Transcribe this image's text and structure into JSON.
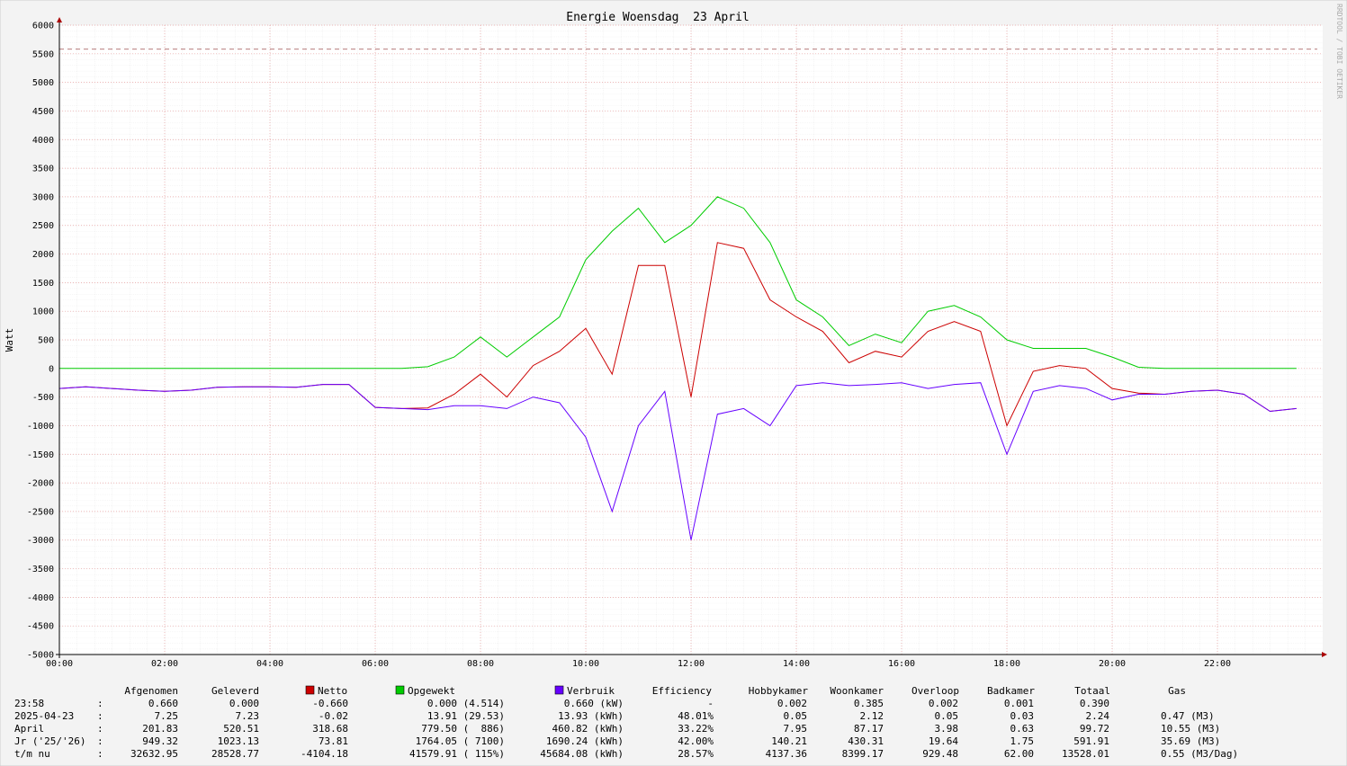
{
  "chart_data": {
    "type": "line",
    "title": "Energie Woensdag  23 April",
    "y_label": "Watt",
    "watermark": "RRDTOOL / TOBI OETIKER",
    "x": [
      0,
      0.5,
      1,
      1.5,
      2,
      2.5,
      3,
      3.5,
      4,
      4.5,
      5,
      5.5,
      6,
      6.5,
      7,
      7.5,
      8,
      8.5,
      9,
      9.5,
      10,
      10.5,
      11,
      11.5,
      12,
      12.5,
      13,
      13.5,
      14,
      14.5,
      15,
      15.5,
      16,
      16.5,
      17,
      17.5,
      18,
      18.5,
      19,
      19.5,
      20,
      20.5,
      21,
      21.5,
      22,
      22.5,
      23,
      23.5
    ],
    "xlim": [
      0,
      24
    ],
    "xticks": [
      {
        "value": 0,
        "label": "00:00"
      },
      {
        "value": 2,
        "label": "02:00"
      },
      {
        "value": 4,
        "label": "04:00"
      },
      {
        "value": 6,
        "label": "06:00"
      },
      {
        "value": 8,
        "label": "08:00"
      },
      {
        "value": 10,
        "label": "10:00"
      },
      {
        "value": 12,
        "label": "12:00"
      },
      {
        "value": 14,
        "label": "14:00"
      },
      {
        "value": 16,
        "label": "16:00"
      },
      {
        "value": 18,
        "label": "18:00"
      },
      {
        "value": 20,
        "label": "20:00"
      },
      {
        "value": 22,
        "label": "22:00"
      }
    ],
    "ylim": [
      -5000,
      6000
    ],
    "yticks": [
      -5000,
      -4500,
      -4000,
      -3500,
      -3000,
      -2500,
      -2000,
      -1500,
      -1000,
      -500,
      0,
      500,
      1000,
      1500,
      2000,
      2500,
      3000,
      3500,
      4000,
      4500,
      5000,
      5500,
      6000
    ],
    "grid": true,
    "hrule": 5580,
    "series": [
      {
        "name": "Opgewekt",
        "color": "#00cc00",
        "values": [
          0,
          0,
          0,
          0,
          0,
          0,
          0,
          0,
          0,
          0,
          0,
          0,
          0,
          0,
          30,
          200,
          550,
          200,
          550,
          900,
          1900,
          2400,
          2800,
          2200,
          2500,
          3000,
          2800,
          2200,
          1200,
          900,
          400,
          600,
          450,
          1000,
          1100,
          900,
          500,
          350,
          350,
          350,
          200,
          20,
          0,
          0,
          0,
          0,
          0,
          0
        ]
      },
      {
        "name": "Netto",
        "color": "#cc0000",
        "values": [
          -350,
          -320,
          -350,
          -380,
          -400,
          -380,
          -330,
          -320,
          -320,
          -330,
          -280,
          -280,
          -680,
          -700,
          -690,
          -450,
          -100,
          -500,
          50,
          300,
          700,
          -100,
          1800,
          1800,
          -500,
          2200,
          2100,
          1200,
          900,
          650,
          100,
          300,
          200,
          650,
          820,
          650,
          -1000,
          -50,
          50,
          0,
          -350,
          -430,
          -450,
          -400,
          -380,
          -450,
          -750,
          -700
        ]
      },
      {
        "name": "Verbruik",
        "color": "#6600ff",
        "values": [
          -350,
          -320,
          -350,
          -380,
          -400,
          -380,
          -330,
          -320,
          -320,
          -330,
          -280,
          -280,
          -680,
          -700,
          -720,
          -650,
          -650,
          -700,
          -500,
          -600,
          -1200,
          -2500,
          -1000,
          -400,
          -3000,
          -800,
          -700,
          -1000,
          -300,
          -250,
          -300,
          -280,
          -250,
          -350,
          -280,
          -250,
          -1500,
          -400,
          -300,
          -350,
          -550,
          -450,
          -450,
          -400,
          -380,
          -450,
          -750,
          -700
        ]
      }
    ]
  },
  "table": {
    "columns": [
      "Afgenomen",
      "Geleverd",
      "Netto",
      "Opgewekt",
      "Verbruik",
      "Efficiency",
      "Hobbykamer",
      "Woonkamer",
      "Overloop",
      "Badkamer",
      "Totaal",
      "Gas"
    ],
    "rows": [
      {
        "label": "23:58",
        "separator": ":",
        "cells": [
          "0.660",
          "0.000",
          "-0.660",
          "0.000 (4.514)",
          "0.660 (kW)",
          "-",
          "0.002",
          "0.385",
          "0.002",
          "0.001",
          "0.390",
          ""
        ]
      },
      {
        "label": "2025-04-23",
        "separator": ":",
        "cells": [
          "7.25",
          "7.23",
          "-0.02",
          "13.91 (29.53)",
          "13.93 (kWh)",
          "48.01%",
          "0.05",
          "2.12",
          "0.05",
          "0.03",
          "2.24",
          "0.47 (M3)"
        ]
      },
      {
        "label": "April",
        "separator": ":",
        "cells": [
          "201.83",
          "520.51",
          "318.68",
          "779.50 (  886)",
          "460.82 (kWh)",
          "33.22%",
          "7.95",
          "87.17",
          "3.98",
          "0.63",
          "99.72",
          "10.55 (M3)"
        ]
      },
      {
        "label": "Jr ('25/'26)",
        "separator": ":",
        "cells": [
          "949.32",
          "1023.13",
          "73.81",
          "1764.05 ( 7100)",
          "1690.24 (kWh)",
          "42.00%",
          "140.21",
          "430.31",
          "19.64",
          "1.75",
          "591.91",
          "35.69 (M3)"
        ]
      },
      {
        "label": "t/m nu",
        "separator": ":",
        "cells": [
          "32632.95",
          "28528.77",
          "-4104.18",
          "41579.91 ( 115%)",
          "45684.08 (kWh)",
          "28.57%",
          "4137.36",
          "8399.17",
          "929.48",
          "62.00",
          "13528.01",
          "0.55 (M3/Dag)"
        ]
      }
    ]
  }
}
